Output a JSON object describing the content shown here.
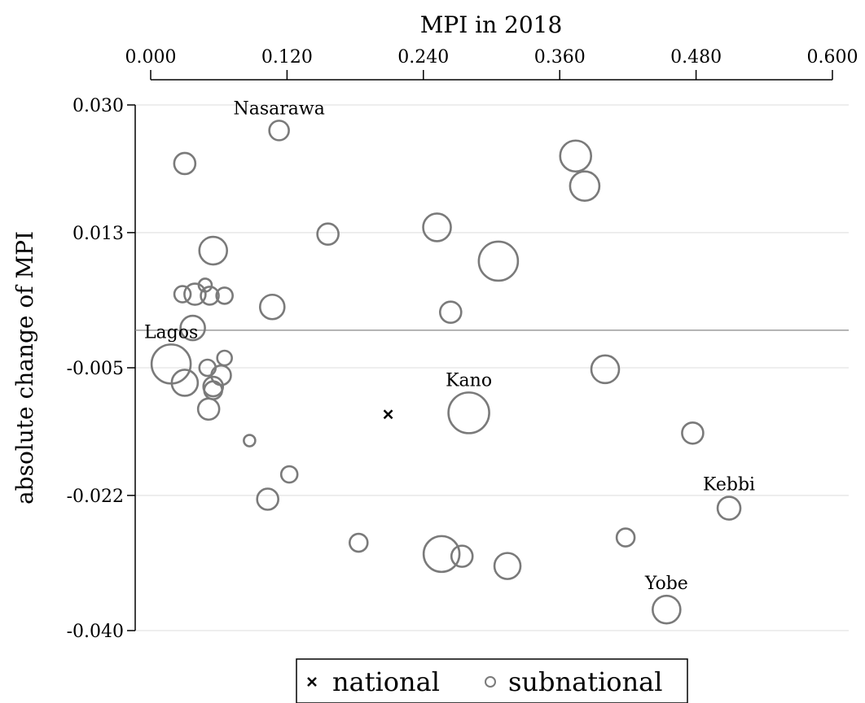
{
  "chart_data": {
    "type": "scatter",
    "title": "",
    "xlabel": "MPI in 2018",
    "ylabel": "absolute change of MPI",
    "x_axis_position": "top",
    "xlim": [
      0.0,
      0.6
    ],
    "ylim": [
      -0.04,
      0.03
    ],
    "xticks": [
      "0.000",
      "0.120",
      "0.240",
      "0.360",
      "0.480",
      "0.600"
    ],
    "yticks": [
      "0.030",
      "0.013",
      "-0.005",
      "-0.022",
      "-0.040"
    ],
    "grid": true,
    "reference_line_y": 0.0,
    "legend": {
      "position": "bottom",
      "entries": [
        {
          "marker": "x",
          "label": "national"
        },
        {
          "marker": "circle",
          "label": "subnational"
        }
      ]
    },
    "colors": {
      "subnational": "#7a7a7a",
      "national": "#000000",
      "grid": "#e8e8e8"
    },
    "national": {
      "x": 0.209,
      "y": -0.0112
    },
    "series": [
      {
        "name": "subnational",
        "points": [
          {
            "x": 0.113,
            "y": 0.0266,
            "size": 12,
            "label": "Nasarawa"
          },
          {
            "x": 0.03,
            "y": 0.0222,
            "size": 13
          },
          {
            "x": 0.374,
            "y": 0.0232,
            "size": 19
          },
          {
            "x": 0.382,
            "y": 0.0192,
            "size": 18
          },
          {
            "x": 0.156,
            "y": 0.0128,
            "size": 13
          },
          {
            "x": 0.252,
            "y": 0.0137,
            "size": 17
          },
          {
            "x": 0.055,
            "y": 0.0106,
            "size": 17
          },
          {
            "x": 0.306,
            "y": 0.0092,
            "size": 24
          },
          {
            "x": 0.048,
            "y": 0.006,
            "size": 8
          },
          {
            "x": 0.028,
            "y": 0.0048,
            "size": 10
          },
          {
            "x": 0.039,
            "y": 0.0048,
            "size": 13
          },
          {
            "x": 0.052,
            "y": 0.0046,
            "size": 11
          },
          {
            "x": 0.065,
            "y": 0.0046,
            "size": 10
          },
          {
            "x": 0.107,
            "y": 0.0031,
            "size": 15
          },
          {
            "x": 0.264,
            "y": 0.0024,
            "size": 13
          },
          {
            "x": 0.037,
            "y": 0.0003,
            "size": 15
          },
          {
            "x": 0.018,
            "y": -0.0045,
            "size": 24,
            "label": "Lagos"
          },
          {
            "x": 0.065,
            "y": -0.0037,
            "size": 9
          },
          {
            "x": 0.05,
            "y": -0.005,
            "size": 10
          },
          {
            "x": 0.062,
            "y": -0.006,
            "size": 12
          },
          {
            "x": 0.03,
            "y": -0.007,
            "size": 16
          },
          {
            "x": 0.055,
            "y": -0.0075,
            "size": 12
          },
          {
            "x": 0.055,
            "y": -0.008,
            "size": 11
          },
          {
            "x": 0.4,
            "y": -0.0052,
            "size": 17
          },
          {
            "x": 0.051,
            "y": -0.0105,
            "size": 13
          },
          {
            "x": 0.28,
            "y": -0.011,
            "size": 25,
            "label": "Kano"
          },
          {
            "x": 0.087,
            "y": -0.0147,
            "size": 7
          },
          {
            "x": 0.477,
            "y": -0.0137,
            "size": 13
          },
          {
            "x": 0.122,
            "y": -0.0192,
            "size": 10
          },
          {
            "x": 0.103,
            "y": -0.0225,
            "size": 13
          },
          {
            "x": 0.509,
            "y": -0.0237,
            "size": 14,
            "label": "Kebbi"
          },
          {
            "x": 0.418,
            "y": -0.0276,
            "size": 11
          },
          {
            "x": 0.183,
            "y": -0.0283,
            "size": 11
          },
          {
            "x": 0.256,
            "y": -0.0298,
            "size": 22
          },
          {
            "x": 0.274,
            "y": -0.0301,
            "size": 13
          },
          {
            "x": 0.314,
            "y": -0.0314,
            "size": 16
          },
          {
            "x": 0.454,
            "y": -0.0372,
            "size": 17,
            "label": "Yobe"
          }
        ]
      }
    ]
  }
}
